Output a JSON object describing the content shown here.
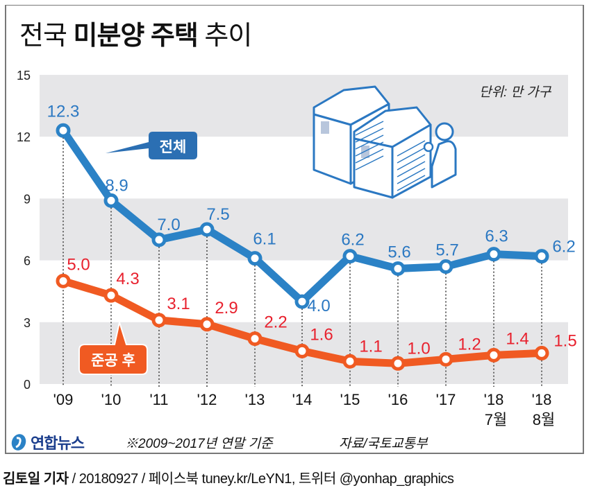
{
  "title": {
    "part1": "전국",
    "part2": "미분양 주택",
    "part3": "추이"
  },
  "unit_label": "단위: 만 가구",
  "footer": {
    "logo_text": "연합뉴스",
    "note": "※2009~2017년 연말 기준",
    "source": "자료/국토교통부"
  },
  "credit": {
    "author": "김토일 기자",
    "details": "/ 20180927 / 페이스북 tuney.kr/LeYN1, 트위터 @yonhap_graphics"
  },
  "colors": {
    "total": "#2b82c6",
    "after_completion": "#f05a22",
    "total_label": "#2b78c2",
    "after_label": "#e8212e",
    "band": "#e6e6e8"
  },
  "chart_data": {
    "type": "line",
    "title": "전국 미분양 주택 추이",
    "xlabel": "",
    "ylabel": "단위: 만 가구",
    "ylim": [
      0,
      15
    ],
    "yticks": [
      0,
      3,
      6,
      9,
      12,
      15
    ],
    "categories": [
      "'09",
      "'10",
      "'11",
      "'12",
      "'13",
      "'14",
      "'15",
      "'16",
      "'17",
      "'18",
      "'18"
    ],
    "category_sublabels": [
      "",
      "",
      "",
      "",
      "",
      "",
      "",
      "",
      "",
      "7월",
      "8월"
    ],
    "series": [
      {
        "name": "전체",
        "values": [
          12.3,
          8.9,
          7.0,
          7.5,
          6.1,
          4.0,
          6.2,
          5.6,
          5.7,
          6.3,
          6.2
        ],
        "labels": [
          "12.3",
          "8.9",
          "7.0",
          "7.5",
          "6.1",
          "4.0",
          "6.2",
          "5.6",
          "5.7",
          "6.3",
          "6.2"
        ]
      },
      {
        "name": "준공 후",
        "values": [
          5.0,
          4.3,
          3.1,
          2.9,
          2.2,
          1.6,
          1.1,
          1.0,
          1.2,
          1.4,
          1.5
        ],
        "labels": [
          "5.0",
          "4.3",
          "3.1",
          "2.9",
          "2.2",
          "1.6",
          "1.1",
          "1.0",
          "1.2",
          "1.4",
          "1.5"
        ]
      }
    ],
    "grid": "alternating horizontal bands",
    "legend": "callout labels on lines"
  }
}
